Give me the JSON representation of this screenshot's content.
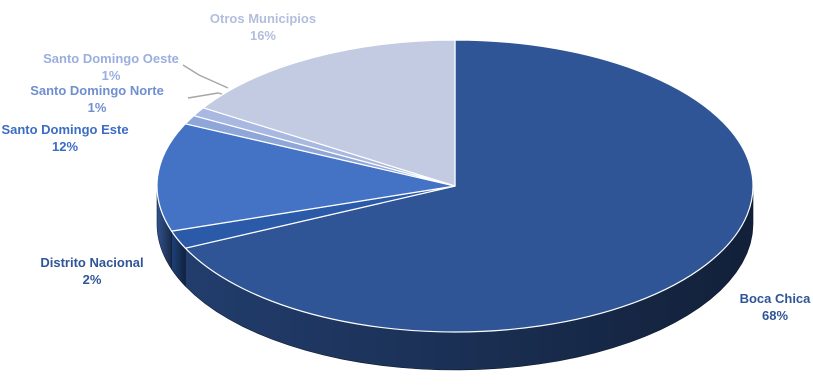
{
  "chart_data": {
    "type": "pie",
    "style": "3d",
    "title": "",
    "slices": [
      {
        "label": "Boca Chica",
        "pct": "68%",
        "value": 68,
        "color": "#2f5597",
        "label_color": "#2f5597"
      },
      {
        "label": "Distrito Nacional",
        "pct": "2%",
        "value": 2,
        "color": "#2a5aa8",
        "label_color": "#2f5597"
      },
      {
        "label": "Santo Domingo Este",
        "pct": "12%",
        "value": 12,
        "color": "#4472c4",
        "label_color": "#3c6cc4"
      },
      {
        "label": "Santo Domingo Norte",
        "pct": "1%",
        "value": 1,
        "color": "#8fa6d8",
        "label_color": "#6f8fd0"
      },
      {
        "label": "Santo Domingo Oeste",
        "pct": "1%",
        "value": 1,
        "color": "#a9b8e0",
        "label_color": "#9aaee0"
      },
      {
        "label": "Otros Municipios",
        "pct": "16%",
        "value": 16,
        "color": "#c3cbe3",
        "label_color": "#b3bedc"
      }
    ]
  }
}
